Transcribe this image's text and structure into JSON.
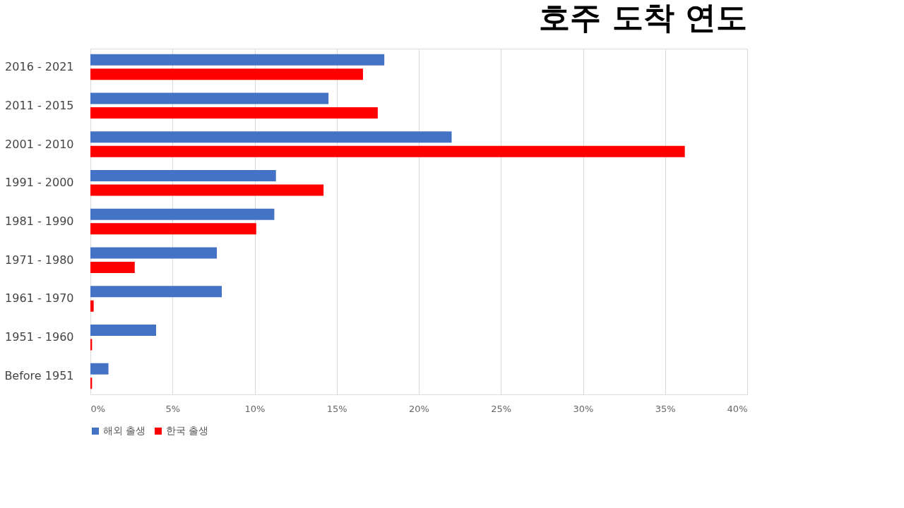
{
  "chart_data": {
    "type": "bar",
    "orientation": "horizontal",
    "title": "호주 도착 연도",
    "categories": [
      "2016 - 2021",
      "2011 - 2015",
      "2001 - 2010",
      "1991 - 2000",
      "1981 - 1990",
      "1971 - 1980",
      "1961 - 1970",
      "1951 - 1960",
      "Before 1951"
    ],
    "series": [
      {
        "name": "해외 출생",
        "color": "#4472c4",
        "values": [
          17.9,
          14.5,
          22.0,
          11.3,
          11.2,
          7.7,
          8.0,
          4.0,
          1.1
        ]
      },
      {
        "name": "한국 출생",
        "color": "#ff0000",
        "values": [
          16.6,
          17.5,
          36.2,
          14.2,
          10.1,
          2.7,
          0.2,
          0.1,
          0.1
        ]
      }
    ],
    "xlim": [
      0,
      40
    ],
    "xticks": [
      {
        "value": 0,
        "label": "0%"
      },
      {
        "value": 5,
        "label": "5%"
      },
      {
        "value": 10,
        "label": "10%"
      },
      {
        "value": 15,
        "label": "15%"
      },
      {
        "value": 20,
        "label": "20%"
      },
      {
        "value": 25,
        "label": "25%"
      },
      {
        "value": 30,
        "label": "30%"
      },
      {
        "value": 35,
        "label": "35%"
      },
      {
        "value": 40,
        "label": "40%"
      }
    ],
    "grid": "x",
    "legend": "bottom"
  }
}
